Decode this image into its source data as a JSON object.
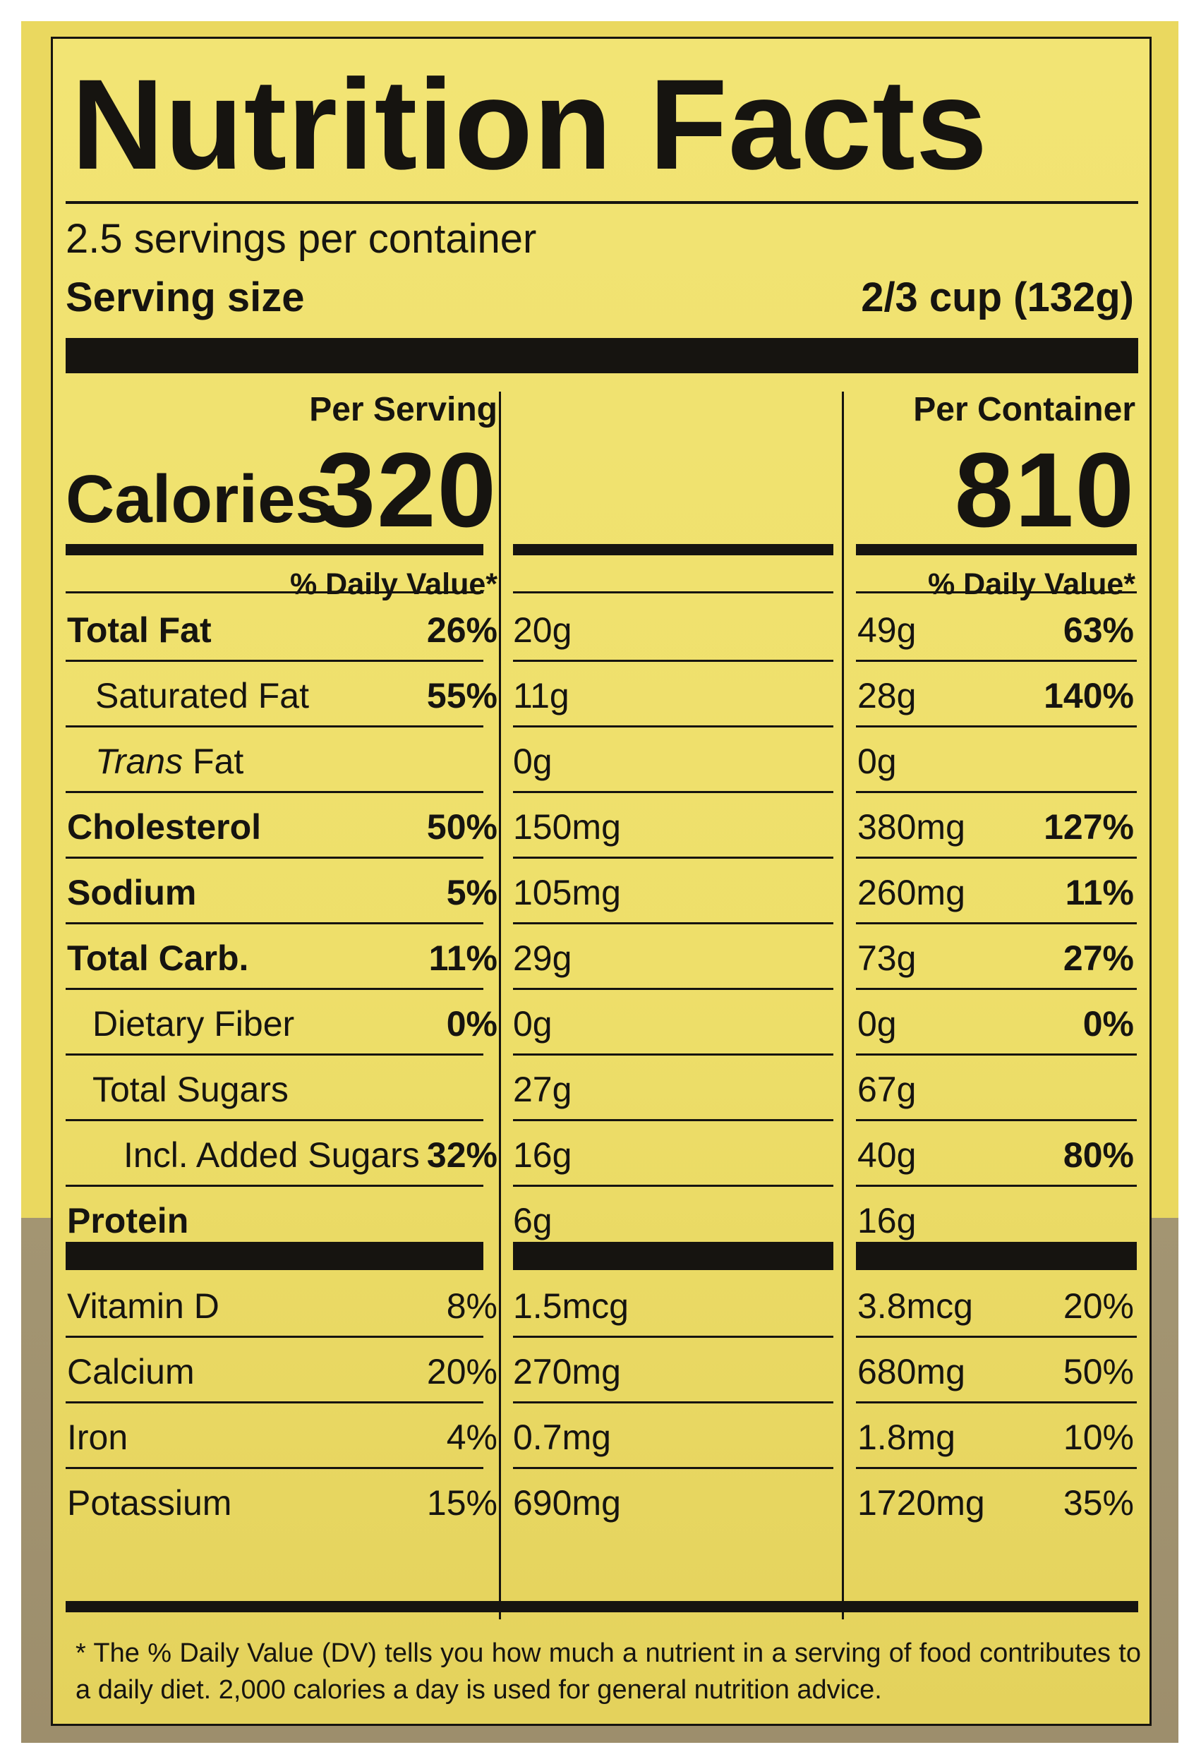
{
  "title": "Nutrition Facts",
  "servings_per_container": "2.5 servings per container",
  "serving_size_label": "Serving size",
  "serving_size_value": "2/3 cup (132g)",
  "calories_label": "Calories",
  "per_serving_header": "Per Serving",
  "per_container_header": "Per Container",
  "calories_per_serving": "320",
  "calories_per_container": "810",
  "daily_value_header": "% Daily Value*",
  "nutrients": [
    {
      "label": "Total Fat",
      "serving_amount": "20g",
      "serving_dv": "26%",
      "container_amount": "49g",
      "container_dv": "63%"
    },
    {
      "label": "Saturated Fat",
      "serving_amount": "11g",
      "serving_dv": "55%",
      "container_amount": "28g",
      "container_dv": "140%"
    },
    {
      "label": "Trans",
      "label_rest": " Fat",
      "serving_amount": "0g",
      "serving_dv": "",
      "container_amount": "0g",
      "container_dv": ""
    },
    {
      "label": "Cholesterol",
      "serving_amount": "150mg",
      "serving_dv": "50%",
      "container_amount": "380mg",
      "container_dv": "127%"
    },
    {
      "label": "Sodium",
      "serving_amount": "105mg",
      "serving_dv": "5%",
      "container_amount": "260mg",
      "container_dv": "11%"
    },
    {
      "label": "Total Carb.",
      "serving_amount": "29g",
      "serving_dv": "11%",
      "container_amount": "73g",
      "container_dv": "27%"
    },
    {
      "label": "Dietary Fiber",
      "serving_amount": "0g",
      "serving_dv": "0%",
      "container_amount": "0g",
      "container_dv": "0%"
    },
    {
      "label": "Total Sugars",
      "serving_amount": "27g",
      "serving_dv": "",
      "container_amount": "67g",
      "container_dv": ""
    },
    {
      "label": "Incl. Added Sugars",
      "serving_amount": "16g",
      "serving_dv": "32%",
      "container_amount": "40g",
      "container_dv": "80%"
    },
    {
      "label": "Protein",
      "serving_amount": "6g",
      "serving_dv": "",
      "container_amount": "16g",
      "container_dv": ""
    }
  ],
  "vitamins": [
    {
      "label": "Vitamin D",
      "serving_amount": "1.5mcg",
      "serving_dv": "8%",
      "container_amount": "3.8mcg",
      "container_dv": "20%"
    },
    {
      "label": "Calcium",
      "serving_amount": "270mg",
      "serving_dv": "20%",
      "container_amount": "680mg",
      "container_dv": "50%"
    },
    {
      "label": "Iron",
      "serving_amount": "0.7mg",
      "serving_dv": "4%",
      "container_amount": "1.8mg",
      "container_dv": "10%"
    },
    {
      "label": "Potassium",
      "serving_amount": "690mg",
      "serving_dv": "15%",
      "container_amount": "1720mg",
      "container_dv": "35%"
    }
  ],
  "footnote": "* The % Daily Value (DV) tells you how much a nutrient in a serving of food contributes to a daily diet. 2,000 calories a day is used for general nutrition advice."
}
